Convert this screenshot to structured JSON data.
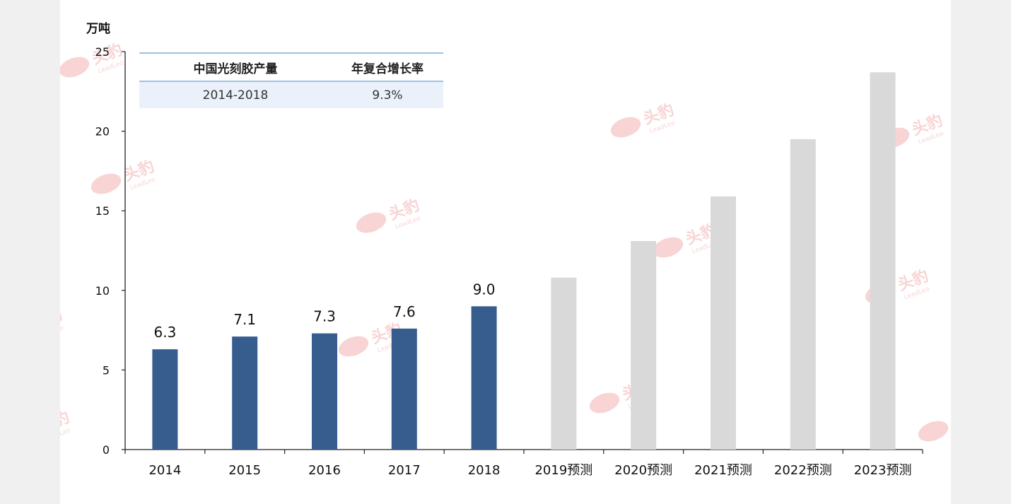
{
  "chart_data": {
    "type": "bar",
    "unit_label": "万吨",
    "categories": [
      "2014",
      "2015",
      "2016",
      "2017",
      "2018",
      "2019预测",
      "2020预测",
      "2021预测",
      "2022预测",
      "2023预测"
    ],
    "values": [
      6.3,
      7.1,
      7.3,
      7.6,
      9.0,
      10.8,
      13.1,
      15.9,
      19.5,
      23.7
    ],
    "data_labels": [
      "6.3",
      "7.1",
      "7.3",
      "7.6",
      "9.0",
      "",
      "",
      "",
      "",
      ""
    ],
    "ylim": [
      0,
      25
    ],
    "yticks": [
      "0",
      "5",
      "10",
      "15",
      "20",
      "25"
    ],
    "colors": {
      "actual": "#365d8e",
      "forecast": "#d9d9d9"
    },
    "grid": false
  },
  "cagr_table": {
    "header": [
      "中国光刻胶产量",
      "年复合增长率"
    ],
    "row": [
      "2014-2018",
      "9.3%"
    ]
  },
  "watermark": {
    "text": "头豹",
    "sub": "LeadLeo",
    "color": "#f2aaaa"
  }
}
